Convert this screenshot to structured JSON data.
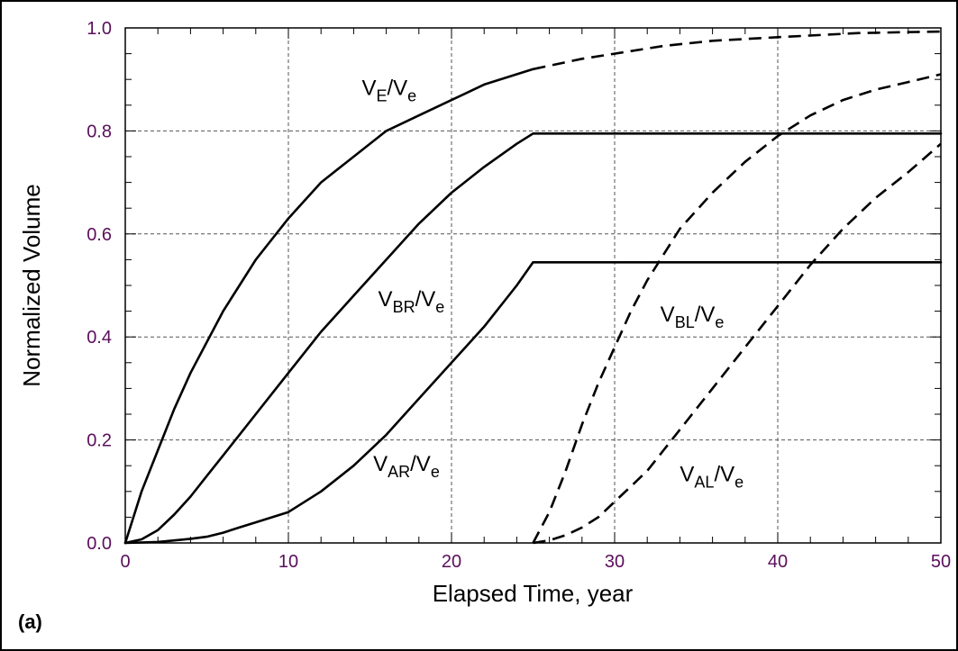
{
  "chart_data": {
    "type": "line",
    "panel_label": "(a)",
    "xlabel": "Elapsed Time, year",
    "ylabel": "Normalized Volume",
    "xlim": [
      0,
      50
    ],
    "ylim": [
      0,
      1.0
    ],
    "x_ticks": [
      {
        "value": 0,
        "label": "0"
      },
      {
        "value": 10,
        "label": "10"
      },
      {
        "value": 20,
        "label": "20"
      },
      {
        "value": 30,
        "label": "30"
      },
      {
        "value": 40,
        "label": "40"
      },
      {
        "value": 50,
        "label": "50"
      }
    ],
    "y_ticks": [
      {
        "value": 0.0,
        "label": "0.0"
      },
      {
        "value": 0.2,
        "label": "0.2"
      },
      {
        "value": 0.4,
        "label": "0.4"
      },
      {
        "value": 0.6,
        "label": "0.6"
      },
      {
        "value": 0.8,
        "label": "0.8"
      },
      {
        "value": 1.0,
        "label": "1.0"
      }
    ],
    "x_minor_step": 2,
    "y_minor_step": 0.05,
    "grid": true,
    "tick_color": "#5a0f5a",
    "series": [
      {
        "name": "VE/Ve",
        "label_parts": {
          "v1": "V",
          "s1": "E",
          "mid": "/V",
          "s2": "e"
        },
        "label_at": [
          14.5,
          0.87
        ],
        "style": "solid",
        "points": [
          [
            0,
            0
          ],
          [
            1,
            0.1
          ],
          [
            2,
            0.18
          ],
          [
            3,
            0.26
          ],
          [
            4,
            0.33
          ],
          [
            5,
            0.39
          ],
          [
            6,
            0.45
          ],
          [
            7,
            0.5
          ],
          [
            8,
            0.55
          ],
          [
            9,
            0.59
          ],
          [
            10,
            0.63
          ],
          [
            12,
            0.7
          ],
          [
            14,
            0.75
          ],
          [
            16,
            0.8
          ],
          [
            18,
            0.83
          ],
          [
            20,
            0.86
          ],
          [
            22,
            0.89
          ],
          [
            25,
            0.92
          ]
        ]
      },
      {
        "name": "VE/Ve continued",
        "style": "dashed",
        "points": [
          [
            25,
            0.92
          ],
          [
            28,
            0.94
          ],
          [
            30,
            0.95
          ],
          [
            33,
            0.965
          ],
          [
            36,
            0.975
          ],
          [
            40,
            0.982
          ],
          [
            45,
            0.99
          ],
          [
            50,
            0.993
          ]
        ]
      },
      {
        "name": "VBR/Ve",
        "label_parts": {
          "v1": "V",
          "s1": "BR",
          "mid": "/V",
          "s2": "e"
        },
        "label_at": [
          15.5,
          0.46
        ],
        "style": "solid",
        "points": [
          [
            0,
            0
          ],
          [
            1,
            0.007
          ],
          [
            2,
            0.025
          ],
          [
            3,
            0.055
          ],
          [
            4,
            0.09
          ],
          [
            5,
            0.13
          ],
          [
            6,
            0.17
          ],
          [
            7,
            0.21
          ],
          [
            8,
            0.25
          ],
          [
            9,
            0.29
          ],
          [
            10,
            0.33
          ],
          [
            12,
            0.41
          ],
          [
            14,
            0.48
          ],
          [
            16,
            0.55
          ],
          [
            18,
            0.62
          ],
          [
            20,
            0.68
          ],
          [
            22,
            0.73
          ],
          [
            24,
            0.775
          ],
          [
            25,
            0.795
          ],
          [
            30,
            0.795
          ],
          [
            40,
            0.795
          ],
          [
            50,
            0.795
          ]
        ]
      },
      {
        "name": "VAR/Ve",
        "label_parts": {
          "v1": "V",
          "s1": "AR",
          "mid": "/V",
          "s2": "e"
        },
        "label_at": [
          15.2,
          0.14
        ],
        "style": "solid",
        "points": [
          [
            0,
            0
          ],
          [
            2,
            0.002
          ],
          [
            4,
            0.008
          ],
          [
            5,
            0.012
          ],
          [
            6,
            0.02
          ],
          [
            7,
            0.03
          ],
          [
            8,
            0.04
          ],
          [
            10,
            0.06
          ],
          [
            12,
            0.1
          ],
          [
            14,
            0.15
          ],
          [
            16,
            0.21
          ],
          [
            18,
            0.28
          ],
          [
            20,
            0.35
          ],
          [
            22,
            0.42
          ],
          [
            24,
            0.5
          ],
          [
            25,
            0.545
          ],
          [
            30,
            0.545
          ],
          [
            40,
            0.545
          ],
          [
            50,
            0.545
          ]
        ]
      },
      {
        "name": "VBL/Ve",
        "label_parts": {
          "v1": "V",
          "s1": "BL",
          "mid": "/V",
          "s2": "e"
        },
        "label_at": [
          32.8,
          0.43
        ],
        "style": "dashed",
        "points": [
          [
            25,
            0
          ],
          [
            26,
            0.06
          ],
          [
            27,
            0.14
          ],
          [
            28,
            0.23
          ],
          [
            29,
            0.31
          ],
          [
            30,
            0.38
          ],
          [
            31,
            0.45
          ],
          [
            32,
            0.51
          ],
          [
            33,
            0.56
          ],
          [
            34,
            0.61
          ],
          [
            36,
            0.68
          ],
          [
            38,
            0.74
          ],
          [
            40,
            0.79
          ],
          [
            42,
            0.83
          ],
          [
            44,
            0.86
          ],
          [
            46,
            0.88
          ],
          [
            48,
            0.895
          ],
          [
            50,
            0.91
          ]
        ]
      },
      {
        "name": "VAL/Ve",
        "label_parts": {
          "v1": "V",
          "s1": "AL",
          "mid": "/V",
          "s2": "e"
        },
        "label_at": [
          34,
          0.12
        ],
        "style": "dashed",
        "points": [
          [
            25,
            0
          ],
          [
            26,
            0.005
          ],
          [
            27,
            0.015
          ],
          [
            28,
            0.03
          ],
          [
            29,
            0.05
          ],
          [
            30,
            0.08
          ],
          [
            31,
            0.11
          ],
          [
            32,
            0.14
          ],
          [
            33,
            0.18
          ],
          [
            34,
            0.22
          ],
          [
            35,
            0.26
          ],
          [
            36,
            0.3
          ],
          [
            38,
            0.38
          ],
          [
            40,
            0.46
          ],
          [
            42,
            0.54
          ],
          [
            44,
            0.61
          ],
          [
            46,
            0.67
          ],
          [
            48,
            0.72
          ],
          [
            50,
            0.775
          ]
        ]
      }
    ]
  }
}
